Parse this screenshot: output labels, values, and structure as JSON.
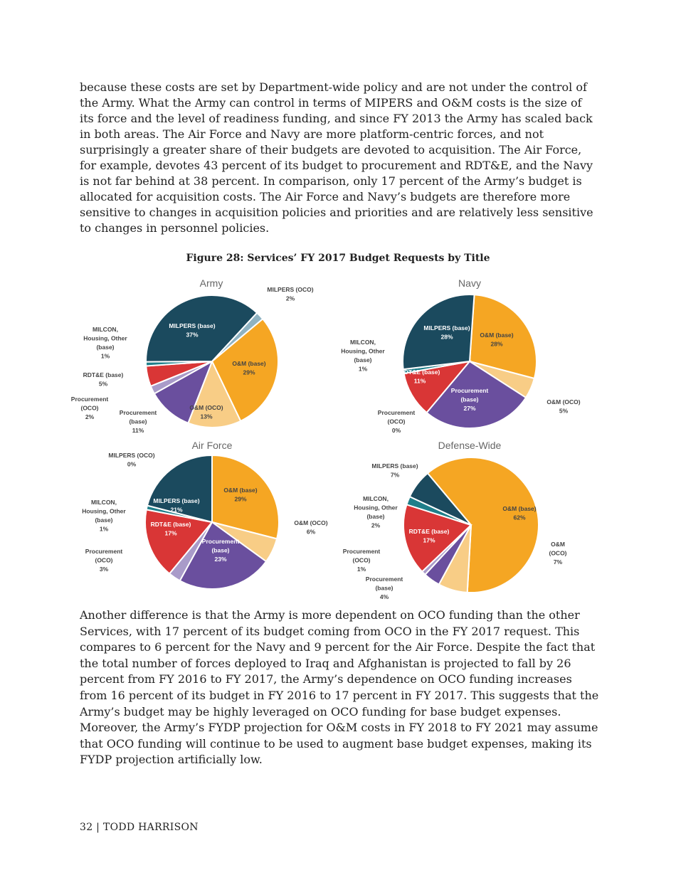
{
  "paragraphs": [
    "because these costs are set by Department-wide policy and are not under the control of the Army. What the Army can control in terms of MIPERS and O&M costs is the size of its force and the level of readiness funding, and since FY 2013 the Army has scaled back in both areas. The Air Force and Navy are more platform-centric forces, and not surprisingly a greater share of their budgets are devoted to acquisition. The Air Force, for example, devotes 43 percent of its budget to procurement and RDT&E, and the Navy is not far behind at 38 percent. In comparison, only 17 percent of the Army’s budget is allocated for acquisition costs. The Air Force and Navy’s budgets are therefore more sensitive to changes in acquisition policies and priorities and are relatively less sensitive to changes in personnel policies.",
    "Another difference is that the Army is more dependent on OCO funding than the other Services, with 17 percent of its budget coming from OCO in the FY 2017 request. This compares to 6 percent for the Navy and 9 percent for the Air Force. Despite the fact that the total number of forces deployed to Iraq and Afghanistan is projected to fall by 26 percent from FY 2016 to FY 2017, the Army’s dependence on OCO funding increases from 16 percent of its budget in FY 2016 to 17 percent in FY 2017. This suggests that the Army’s budget may be highly leveraged on OCO funding for base budget expenses. Moreover, the Army’s FYDP projection for O&M costs in FY 2018 to FY 2021 may assume that OCO funding will continue to be used to augment base budget expenses, making its FYDP projection artificially low."
  ],
  "figure_title": "Figure 28: Services’ FY 2017 Budget Requests by Title",
  "footer": "32 | TODD HARRISON",
  "colors": {
    "MILPERS (base)": "#1b4a5e",
    "MILPERS (OCO)": "#8fb3c2",
    "O&M (base)": "#f5a623",
    "O&M (OCO)": "#f8cd86",
    "Procurement (base)": "#6a4f9e",
    "Procurement (OCO)": "#a99bc9",
    "RDT&E (base)": "#d93636",
    "MILCON, Housing, Other (base)": "#1f7f8a"
  },
  "chart_data": [
    {
      "type": "pie",
      "title": "Army",
      "slices": [
        {
          "label": "O&M (base)",
          "value": 29
        },
        {
          "label": "O&M (OCO)",
          "value": 13
        },
        {
          "label": "Procurement (base)",
          "value": 11
        },
        {
          "label": "Procurement (OCO)",
          "value": 2
        },
        {
          "label": "RDT&E (base)",
          "value": 5
        },
        {
          "label": "MILCON, Housing, Other (base)",
          "value": 1
        },
        {
          "label": "MILPERS (base)",
          "value": 37
        },
        {
          "label": "MILPERS (OCO)",
          "value": 2
        }
      ]
    },
    {
      "type": "pie",
      "title": "Navy",
      "slices": [
        {
          "label": "O&M (base)",
          "value": 28
        },
        {
          "label": "O&M (OCO)",
          "value": 5
        },
        {
          "label": "Procurement (base)",
          "value": 27
        },
        {
          "label": "Procurement (OCO)",
          "value": 0
        },
        {
          "label": "RDT&E (base)",
          "value": 11
        },
        {
          "label": "MILCON, Housing, Other (base)",
          "value": 1
        },
        {
          "label": "MILPERS (base)",
          "value": 28
        }
      ]
    },
    {
      "type": "pie",
      "title": "Air Force",
      "slices": [
        {
          "label": "O&M (base)",
          "value": 29
        },
        {
          "label": "O&M (OCO)",
          "value": 6
        },
        {
          "label": "Procurement (base)",
          "value": 23
        },
        {
          "label": "Procurement (OCO)",
          "value": 3
        },
        {
          "label": "RDT&E (base)",
          "value": 17
        },
        {
          "label": "MILCON, Housing, Other (base)",
          "value": 1
        },
        {
          "label": "MILPERS (base)",
          "value": 21
        },
        {
          "label": "MILPERS (OCO)",
          "value": 0
        }
      ]
    },
    {
      "type": "pie",
      "title": "Defense-Wide",
      "slices": [
        {
          "label": "O&M (base)",
          "value": 62
        },
        {
          "label": "O&M (OCO)",
          "value": 7
        },
        {
          "label": "Procurement (base)",
          "value": 4
        },
        {
          "label": "Procurement (OCO)",
          "value": 1
        },
        {
          "label": "RDT&E (base)",
          "value": 17
        },
        {
          "label": "MILCON, Housing, Other (base)",
          "value": 2
        },
        {
          "label": "MILPERS (base)",
          "value": 7
        }
      ]
    }
  ]
}
